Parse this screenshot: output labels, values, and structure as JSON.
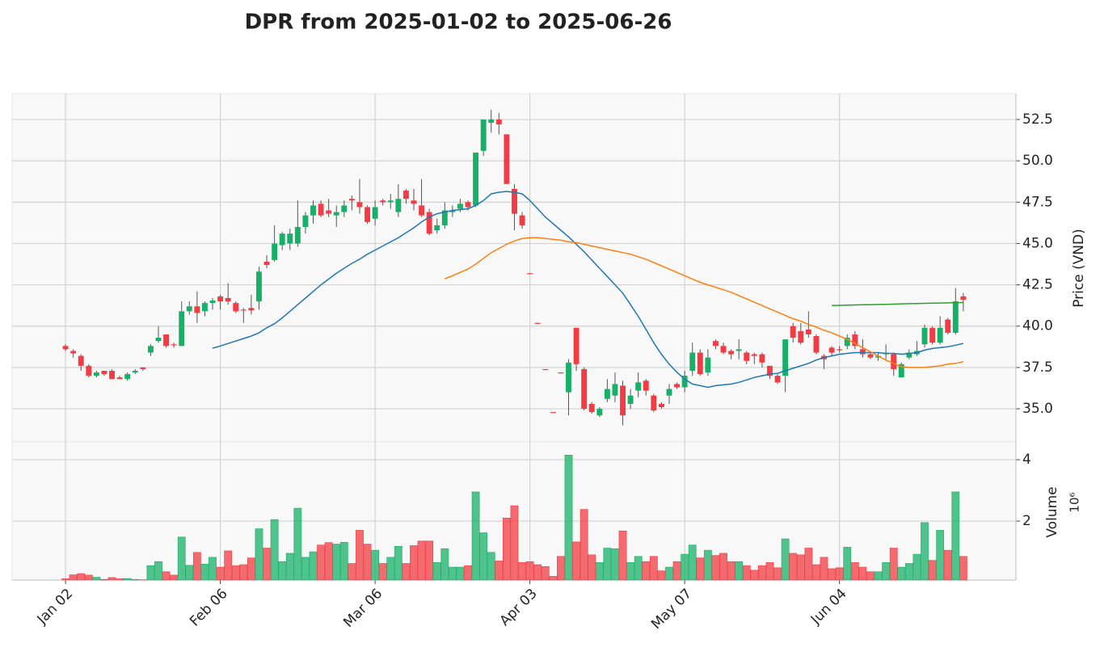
{
  "chart_data": {
    "type": "candlestick",
    "title": "DPR from 2025-01-02 to 2025-06-26",
    "ylabel": "Price (VND)",
    "grid": true,
    "up_color": "#18b068",
    "down_color": "#f23b42",
    "xlim": [
      -6.9,
      122.8
    ],
    "ylim": [
      33.0,
      54.06
    ],
    "yticks": [
      {
        "value": 35,
        "label": "35.0"
      },
      37.5,
      {
        "value": 40,
        "label": "40.0"
      },
      42.5,
      {
        "value": 45,
        "label": "45.0"
      },
      47.5,
      {
        "value": 50,
        "label": "50.0"
      },
      52.5
    ],
    "categories": [
      "Jan 02",
      null,
      null,
      null,
      null,
      null,
      null,
      null,
      null,
      null,
      null,
      null,
      null,
      null,
      null,
      null,
      null,
      null,
      null,
      null,
      "Feb 06",
      null,
      null,
      null,
      null,
      null,
      null,
      null,
      null,
      null,
      null,
      null,
      null,
      null,
      null,
      null,
      null,
      null,
      null,
      null,
      "Mar 06",
      null,
      null,
      null,
      null,
      null,
      null,
      null,
      null,
      null,
      null,
      null,
      null,
      null,
      null,
      null,
      null,
      null,
      null,
      null,
      "Apr 03",
      null,
      null,
      null,
      null,
      null,
      null,
      null,
      null,
      null,
      null,
      null,
      null,
      null,
      null,
      null,
      null,
      null,
      null,
      null,
      "May 07",
      null,
      null,
      null,
      null,
      null,
      null,
      null,
      null,
      null,
      null,
      null,
      null,
      null,
      null,
      null,
      null,
      null,
      null,
      null,
      "Jun 04",
      null,
      null,
      null,
      null,
      null,
      null,
      null,
      null,
      null,
      null,
      null,
      null,
      null,
      null,
      null,
      null
    ],
    "open": [
      38.8,
      38.5,
      38.2,
      37.6,
      37.0,
      37.3,
      37.3,
      36.9,
      36.8,
      37.2,
      37.5,
      38.4,
      39.1,
      39.5,
      38.9,
      38.8,
      40.9,
      41.2,
      40.9,
      41.4,
      41.8,
      41.7,
      41.4,
      41.0,
      41.1,
      41.5,
      43.9,
      44.0,
      44.9,
      45.0,
      45.0,
      46.0,
      46.7,
      47.4,
      47.0,
      46.7,
      46.9,
      47.7,
      47.5,
      47.2,
      46.5,
      47.6,
      47.5,
      46.9,
      48.2,
      47.6,
      47.3,
      46.9,
      45.8,
      46.1,
      46.9,
      47.1,
      47.5,
      47.3,
      50.6,
      52.3,
      52.5,
      51.6,
      48.3,
      46.7,
      43.2,
      40.2,
      37.4,
      34.8,
      37.2,
      36.0,
      39.9,
      37.4,
      35.3,
      34.6,
      35.6,
      35.8,
      36.4,
      35.3,
      36.1,
      36.7,
      35.8,
      35.3,
      35.8,
      36.5,
      36.3,
      37.3,
      38.4,
      37.2,
      39.1,
      38.8,
      38.5,
      38.5,
      38.4,
      38.3,
      38.3,
      37.6,
      37.0,
      37.0,
      40.0,
      39.7,
      39.8,
      39.4,
      38.2,
      38.7,
      38.6,
      38.8,
      39.5,
      38.6,
      38.3,
      38.1,
      38.3,
      38.3,
      36.9,
      38.1,
      38.3,
      38.9,
      39.9,
      39.0,
      40.4,
      39.6,
      41.8
    ],
    "high": [
      38.9,
      38.6,
      38.3,
      37.7,
      37.3,
      37.3,
      37.4,
      37.0,
      37.2,
      37.4,
      37.5,
      38.9,
      40.0,
      39.5,
      39.0,
      41.5,
      41.5,
      42.1,
      41.5,
      41.7,
      41.9,
      42.6,
      41.5,
      41.1,
      41.9,
      43.6,
      44.3,
      46.1,
      45.7,
      45.9,
      47.6,
      46.9,
      47.6,
      47.6,
      47.7,
      47.3,
      47.6,
      47.9,
      48.9,
      47.3,
      47.6,
      47.7,
      48.0,
      48.6,
      48.3,
      48.3,
      48.9,
      47.1,
      46.5,
      47.5,
      47.3,
      47.7,
      47.6,
      50.5,
      52.5,
      53.1,
      52.9,
      51.6,
      48.6,
      46.9,
      43.2,
      40.2,
      37.4,
      34.8,
      37.2,
      38.0,
      39.9,
      37.5,
      35.4,
      35.1,
      36.8,
      37.2,
      36.7,
      36.2,
      37.2,
      36.8,
      35.9,
      35.4,
      36.5,
      36.6,
      37.3,
      39.0,
      38.6,
      38.6,
      39.2,
      39.0,
      38.6,
      39.2,
      38.5,
      38.4,
      38.4,
      37.6,
      37.1,
      39.2,
      40.2,
      40.2,
      40.9,
      39.5,
      38.3,
      38.8,
      38.8,
      39.5,
      39.7,
      39.2,
      38.4,
      38.4,
      38.9,
      38.4,
      37.8,
      38.6,
      39.1,
      40.1,
      40.0,
      40.6,
      40.5,
      42.3,
      42.0
    ],
    "low": [
      38.5,
      38.1,
      37.3,
      36.9,
      36.9,
      37.0,
      36.8,
      36.8,
      36.7,
      37.1,
      37.3,
      38.2,
      39.0,
      38.7,
      38.7,
      38.8,
      40.7,
      40.2,
      40.6,
      41.0,
      41.0,
      41.3,
      40.8,
      40.2,
      40.7,
      41.0,
      43.5,
      43.9,
      44.6,
      44.6,
      44.8,
      45.6,
      46.2,
      46.6,
      46.6,
      46.0,
      46.6,
      47.0,
      46.8,
      46.2,
      46.1,
      47.3,
      47.1,
      46.6,
      47.4,
      47.0,
      46.6,
      45.5,
      45.6,
      45.9,
      46.6,
      46.9,
      47.0,
      47.2,
      50.3,
      51.7,
      51.6,
      48.6,
      45.8,
      45.9,
      43.15,
      40.15,
      37.35,
      34.75,
      37.15,
      34.6,
      37.3,
      34.9,
      34.7,
      34.5,
      35.4,
      35.4,
      34.0,
      35.0,
      35.7,
      35.8,
      34.8,
      35.0,
      35.3,
      36.2,
      36.0,
      37.0,
      37.0,
      37.0,
      38.6,
      38.3,
      38.0,
      38.0,
      37.7,
      37.7,
      37.5,
      36.8,
      36.5,
      36.0,
      39.0,
      38.9,
      39.3,
      38.3,
      37.4,
      38.2,
      38.4,
      38.6,
      38.6,
      38.1,
      38.0,
      37.9,
      38.0,
      37.0,
      36.9,
      38.0,
      38.2,
      38.7,
      38.9,
      38.9,
      39.5,
      39.5,
      40.9
    ],
    "close": [
      38.6,
      38.35,
      37.6,
      37.0,
      37.2,
      37.1,
      36.8,
      36.8,
      37.1,
      37.3,
      37.4,
      38.8,
      39.3,
      38.8,
      38.85,
      40.9,
      41.2,
      40.8,
      41.4,
      41.55,
      41.5,
      41.5,
      40.9,
      40.95,
      40.95,
      43.3,
      43.7,
      45.0,
      45.6,
      45.6,
      46.0,
      46.7,
      47.3,
      46.7,
      46.8,
      46.9,
      47.3,
      47.6,
      47.2,
      46.3,
      47.2,
      47.5,
      47.6,
      47.7,
      47.7,
      47.4,
      46.7,
      45.6,
      46.1,
      47.0,
      47.0,
      47.4,
      47.2,
      50.5,
      52.5,
      52.5,
      52.2,
      48.6,
      46.8,
      46.1,
      43.15,
      40.15,
      37.35,
      34.75,
      37.15,
      37.8,
      37.7,
      35.0,
      34.8,
      35.0,
      36.2,
      36.5,
      34.6,
      35.8,
      36.6,
      36.1,
      34.9,
      35.1,
      36.2,
      36.3,
      37.0,
      38.4,
      37.1,
      38.1,
      38.8,
      38.4,
      38.3,
      38.6,
      37.9,
      38.2,
      37.8,
      37.0,
      36.6,
      39.2,
      39.3,
      39.0,
      39.5,
      38.4,
      38.0,
      38.4,
      38.55,
      39.3,
      38.8,
      38.3,
      38.1,
      38.2,
      38.4,
      37.4,
      37.7,
      38.4,
      38.5,
      39.9,
      39.0,
      39.9,
      39.6,
      41.5,
      41.6
    ],
    "moving_averages": [
      {
        "color": "#1f77b4",
        "values": [
          null,
          null,
          null,
          null,
          null,
          null,
          null,
          null,
          null,
          null,
          null,
          null,
          null,
          null,
          null,
          null,
          null,
          null,
          null,
          38.67,
          38.8,
          38.95,
          39.1,
          39.25,
          39.4,
          39.6,
          39.9,
          40.15,
          40.5,
          40.9,
          41.3,
          41.7,
          42.1,
          42.5,
          42.85,
          43.2,
          43.5,
          43.8,
          44.05,
          44.35,
          44.6,
          44.85,
          45.1,
          45.35,
          45.65,
          45.95,
          46.3,
          46.6,
          46.8,
          46.9,
          47.0,
          47.05,
          47.1,
          47.3,
          47.6,
          48.0,
          48.1,
          48.15,
          48.1,
          48.0,
          47.6,
          47.1,
          46.6,
          46.2,
          45.8,
          45.4,
          44.95,
          44.5,
          44.0,
          43.5,
          43.0,
          42.5,
          42.0,
          41.3,
          40.6,
          39.8,
          39.0,
          38.3,
          37.7,
          37.2,
          36.8,
          36.5,
          36.4,
          36.3,
          36.4,
          36.45,
          36.5,
          36.6,
          36.75,
          36.9,
          37.0,
          37.1,
          37.15,
          37.3,
          37.45,
          37.6,
          37.75,
          37.95,
          38.1,
          38.2,
          38.3,
          38.35,
          38.4,
          38.4,
          38.4,
          38.4,
          38.35,
          38.35,
          38.3,
          38.35,
          38.4,
          38.55,
          38.65,
          38.7,
          38.75,
          38.85,
          38.95
        ]
      },
      {
        "color": "#ff7f0e",
        "values": [
          null,
          null,
          null,
          null,
          null,
          null,
          null,
          null,
          null,
          null,
          null,
          null,
          null,
          null,
          null,
          null,
          null,
          null,
          null,
          null,
          null,
          null,
          null,
          null,
          null,
          null,
          null,
          null,
          null,
          null,
          null,
          null,
          null,
          null,
          null,
          null,
          null,
          null,
          null,
          null,
          null,
          null,
          null,
          null,
          null,
          null,
          null,
          null,
          null,
          42.87,
          43.05,
          43.25,
          43.45,
          43.75,
          44.1,
          44.45,
          44.7,
          44.95,
          45.15,
          45.3,
          45.35,
          45.35,
          45.3,
          45.25,
          45.2,
          45.1,
          45.05,
          44.95,
          44.85,
          44.75,
          44.65,
          44.55,
          44.45,
          44.35,
          44.2,
          44.05,
          43.85,
          43.65,
          43.45,
          43.25,
          43.05,
          42.85,
          42.65,
          42.5,
          42.35,
          42.2,
          42.05,
          41.85,
          41.65,
          41.45,
          41.25,
          41.05,
          40.85,
          40.65,
          40.45,
          40.3,
          40.1,
          39.95,
          39.75,
          39.6,
          39.4,
          39.2,
          38.95,
          38.7,
          38.45,
          38.2,
          37.95,
          37.75,
          37.55,
          37.5,
          37.5,
          37.5,
          37.55,
          37.6,
          37.7,
          37.75,
          37.85
        ]
      },
      {
        "color": "#2ca02c",
        "values": [
          null,
          null,
          null,
          null,
          null,
          null,
          null,
          null,
          null,
          null,
          null,
          null,
          null,
          null,
          null,
          null,
          null,
          null,
          null,
          null,
          null,
          null,
          null,
          null,
          null,
          null,
          null,
          null,
          null,
          null,
          null,
          null,
          null,
          null,
          null,
          null,
          null,
          null,
          null,
          null,
          null,
          null,
          null,
          null,
          null,
          null,
          null,
          null,
          null,
          null,
          null,
          null,
          null,
          null,
          null,
          null,
          null,
          null,
          null,
          null,
          null,
          null,
          null,
          null,
          null,
          null,
          null,
          null,
          null,
          null,
          null,
          null,
          null,
          null,
          null,
          null,
          null,
          null,
          null,
          null,
          null,
          null,
          null,
          null,
          null,
          null,
          null,
          null,
          null,
          null,
          null,
          null,
          null,
          null,
          null,
          null,
          null,
          null,
          null,
          41.25,
          41.26,
          41.27,
          41.28,
          41.29,
          41.3,
          41.31,
          41.32,
          41.33,
          41.35,
          41.36,
          41.37,
          41.38,
          41.39,
          41.4,
          41.41,
          41.42,
          41.43
        ]
      }
    ],
    "volume": {
      "label": "Volume",
      "scale_label": "10⁶",
      "ylim": [
        0.08,
        4.58
      ],
      "yticks": [
        2,
        4
      ],
      "values": [
        0.12,
        0.25,
        0.29,
        0.24,
        0.17,
        0.1,
        0.16,
        0.12,
        0.13,
        0.1,
        0.09,
        0.55,
        0.68,
        0.35,
        0.24,
        1.48,
        0.56,
        0.98,
        0.6,
        0.82,
        0.5,
        1.03,
        0.55,
        0.58,
        0.8,
        1.75,
        1.12,
        2.05,
        0.68,
        0.95,
        2.42,
        0.82,
        1.0,
        1.22,
        1.3,
        1.25,
        1.31,
        0.62,
        1.7,
        1.25,
        1.05,
        0.62,
        0.82,
        1.18,
        0.62,
        1.2,
        1.35,
        1.35,
        0.65,
        1.1,
        0.5,
        0.5,
        0.55,
        2.95,
        1.62,
        0.98,
        0.7,
        2.1,
        2.5,
        0.65,
        0.68,
        0.58,
        0.52,
        0.2,
        0.85,
        4.15,
        1.32,
        2.38,
        0.9,
        0.65,
        1.12,
        1.1,
        1.68,
        0.65,
        0.85,
        0.68,
        0.85,
        0.38,
        0.5,
        0.68,
        0.92,
        1.22,
        0.8,
        1.05,
        0.88,
        0.95,
        0.68,
        0.68,
        0.55,
        0.4,
        0.55,
        0.65,
        0.48,
        1.42,
        0.95,
        0.9,
        1.12,
        0.58,
        0.82,
        0.45,
        0.48,
        1.15,
        0.65,
        0.5,
        0.35,
        0.35,
        0.65,
        1.12,
        0.5,
        0.62,
        0.92,
        1.95,
        0.72,
        1.7,
        1.05,
        2.95,
        0.85
      ]
    }
  }
}
